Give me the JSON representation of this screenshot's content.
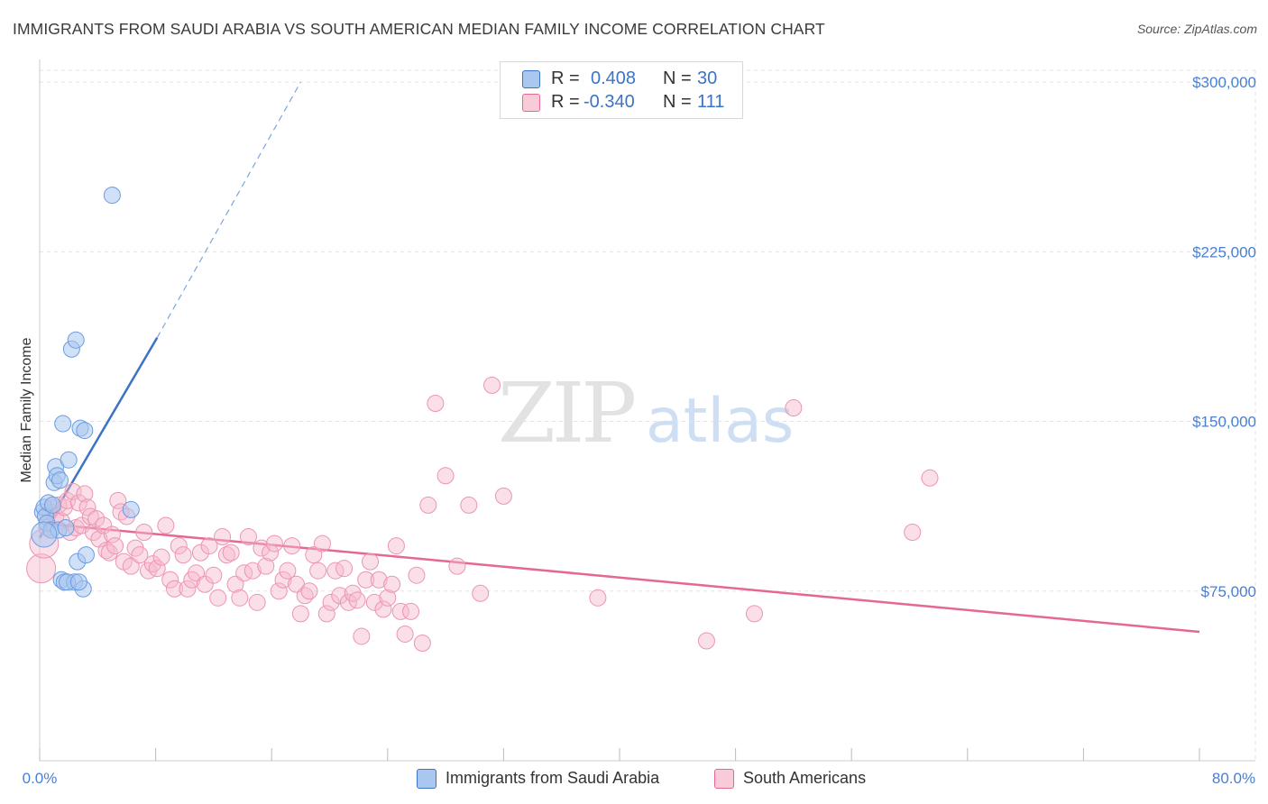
{
  "title": "IMMIGRANTS FROM SAUDI ARABIA VS SOUTH AMERICAN MEDIAN FAMILY INCOME CORRELATION CHART",
  "source": "Source: ZipAtlas.com",
  "watermark": {
    "zip": "ZIP",
    "atlas": "atlas"
  },
  "colors": {
    "blue": "#3b73c8",
    "blue_fill": "#a9c7ef",
    "pink": "#e4688f",
    "pink_fill": "#f6b9cc",
    "axis_text": "#4a7fd0"
  },
  "legend": {
    "series1": {
      "r_label": "R =",
      "r_value": "0.408",
      "n_label": "N =",
      "n_value": "30"
    },
    "series2": {
      "r_label": "R =",
      "r_value": "-0.340",
      "n_label": "N =",
      "n_value": "111"
    }
  },
  "bottom_legend": {
    "series1": "Immigrants from Saudi Arabia",
    "series2": "South Americans"
  },
  "chart_data": {
    "type": "scatter",
    "title": "IMMIGRANTS FROM SAUDI ARABIA VS SOUTH AMERICAN MEDIAN FAMILY INCOME CORRELATION CHART",
    "xlabel": "",
    "ylabel": "Median Family Income",
    "xlim": [
      0,
      80
    ],
    "ylim": [
      0,
      310000
    ],
    "x_tick_labels": [
      "0.0%",
      "80.0%"
    ],
    "y_ticks": [
      75000,
      150000,
      225000,
      300000
    ],
    "y_tick_labels": [
      "$75,000",
      "$150,000",
      "$225,000",
      "$300,000"
    ],
    "grid": true,
    "series": [
      {
        "name": "Immigrants from Saudi Arabia",
        "color": "#3b73c8",
        "x": [
          0.2,
          0.3,
          0.4,
          0.5,
          0.6,
          0.8,
          1.0,
          1.1,
          1.2,
          1.3,
          1.4,
          1.5,
          1.6,
          1.7,
          1.8,
          2.0,
          2.2,
          2.4,
          2.5,
          2.6,
          2.8,
          3.0,
          3.1,
          3.2,
          5.0,
          6.3,
          0.3,
          0.9,
          1.9,
          2.7
        ],
        "y": [
          110000,
          112000,
          108000,
          105000,
          114000,
          102000,
          123000,
          130000,
          126000,
          102000,
          124000,
          80000,
          149000,
          79000,
          103000,
          133000,
          182000,
          79000,
          186000,
          88000,
          147000,
          76000,
          146000,
          91000,
          250000,
          111000,
          100000,
          113000,
          79000,
          79000
        ],
        "trend": {
          "x": [
            0,
            8.1
          ],
          "y": [
            98500,
            187000
          ],
          "extended_to": [
            18,
            300000
          ]
        }
      },
      {
        "name": "South Americans",
        "color": "#e4688f",
        "x": [
          0.1,
          0.3,
          0.5,
          0.7,
          0.9,
          1.1,
          1.3,
          1.5,
          1.7,
          1.9,
          2.1,
          2.3,
          2.5,
          2.7,
          2.9,
          3.1,
          3.3,
          3.5,
          3.7,
          3.9,
          4.1,
          4.4,
          4.6,
          4.8,
          5.0,
          5.2,
          5.4,
          5.6,
          5.8,
          6.0,
          6.3,
          6.6,
          6.9,
          7.2,
          7.5,
          7.8,
          8.1,
          8.4,
          8.7,
          9.0,
          9.3,
          9.6,
          9.9,
          10.2,
          10.5,
          10.8,
          11.1,
          11.4,
          11.7,
          12.0,
          12.3,
          12.6,
          12.9,
          13.2,
          13.5,
          13.8,
          14.1,
          14.4,
          14.7,
          15.0,
          15.3,
          15.6,
          15.9,
          16.2,
          16.5,
          16.8,
          17.1,
          17.4,
          17.7,
          18.0,
          18.3,
          18.6,
          18.9,
          19.2,
          19.5,
          19.8,
          20.1,
          20.4,
          20.7,
          21.0,
          21.3,
          21.6,
          21.9,
          22.2,
          22.5,
          22.8,
          23.1,
          23.4,
          23.7,
          24.0,
          24.3,
          24.6,
          24.9,
          25.2,
          25.6,
          26.0,
          26.4,
          26.8,
          27.3,
          28.0,
          28.8,
          29.6,
          30.4,
          31.2,
          32.0,
          38.5,
          46.0,
          49.3,
          52.0,
          60.2,
          61.4
        ],
        "y": [
          85000,
          96000,
          103000,
          110000,
          112000,
          108000,
          113000,
          106000,
          112000,
          115000,
          101000,
          119000,
          103000,
          114000,
          104000,
          118000,
          112000,
          108000,
          101000,
          107000,
          98000,
          104000,
          93000,
          92000,
          100000,
          95000,
          115000,
          110000,
          88000,
          108000,
          86000,
          94000,
          91000,
          101000,
          84000,
          87000,
          85000,
          90000,
          104000,
          80000,
          76000,
          95000,
          91000,
          76000,
          80000,
          83000,
          92000,
          78000,
          95000,
          82000,
          72000,
          99000,
          91000,
          92000,
          78000,
          72000,
          83000,
          99000,
          84000,
          70000,
          94000,
          86000,
          92000,
          96000,
          75000,
          80000,
          84000,
          95000,
          78000,
          65000,
          73000,
          75000,
          91000,
          84000,
          96000,
          65000,
          70000,
          84000,
          73000,
          85000,
          70000,
          74000,
          71000,
          55000,
          80000,
          88000,
          70000,
          80000,
          67000,
          72000,
          78000,
          95000,
          66000,
          56000,
          66000,
          82000,
          52000,
          113000,
          158000,
          126000,
          86000,
          113000,
          74000,
          166000,
          117000,
          72000,
          53000,
          65000,
          156000,
          101000,
          125000
        ],
        "trend": {
          "x": [
            0,
            80
          ],
          "y": [
            105000,
            57000
          ]
        }
      }
    ]
  }
}
